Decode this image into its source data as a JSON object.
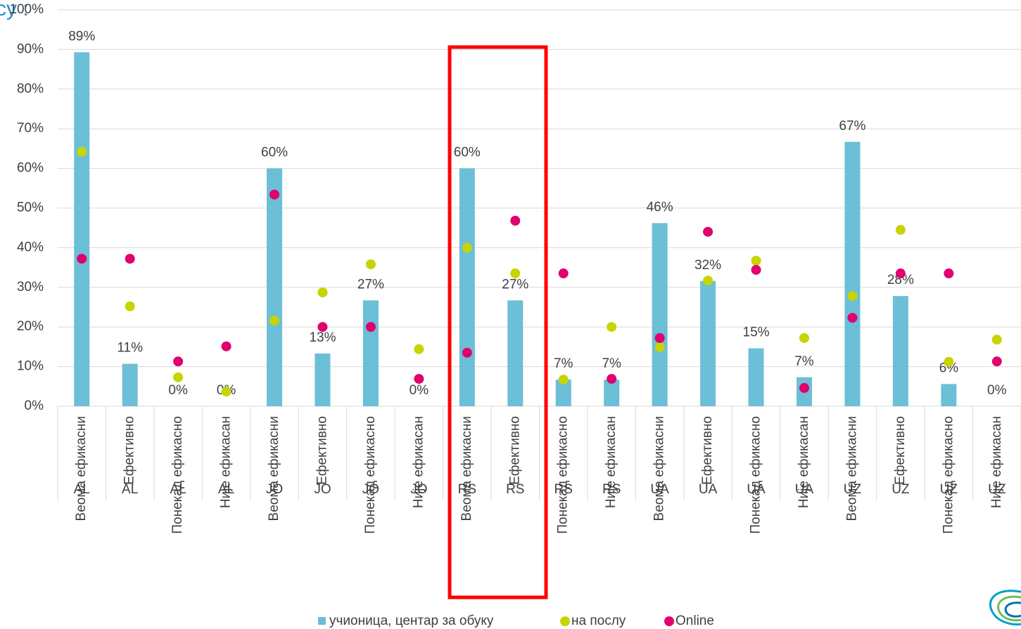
{
  "chart_data": {
    "type": "bar",
    "title": "су :",
    "categories": [
      "Веома ефикасни",
      "Ефективно",
      "Понекад ефикасно",
      "Није ефикасан",
      "Веома ефикасни",
      "Ефективно",
      "Понекад ефикасно",
      "Није ефикасан",
      "Веома ефикасни",
      "Ефективно",
      "Понекад ефикасно",
      "Није ефикасан",
      "Веома ефикасни",
      "Ефективно",
      "Понекад ефикасно",
      "Није ефикасан",
      "Веома ефикасни",
      "Ефективно",
      "Понекад ефикасно",
      "Није ефикасан"
    ],
    "groups": [
      "AL",
      "AL",
      "AL",
      "AL",
      "JO",
      "JO",
      "JO",
      "JO",
      "RS",
      "RS",
      "RS",
      "RS",
      "UA",
      "UA",
      "UA",
      "UA",
      "UZ",
      "UZ",
      "UZ",
      "UZ"
    ],
    "series": [
      {
        "name": "учионица, центар за обуку",
        "color": "#6bbfd6",
        "kind": "bar",
        "values": [
          89.3,
          10.7,
          0,
          0,
          60,
          13.3,
          26.7,
          0,
          60,
          26.7,
          6.7,
          6.7,
          46.2,
          31.6,
          14.6,
          7.3,
          66.7,
          27.8,
          5.6,
          0
        ],
        "value_labels": [
          "89%",
          "11%",
          "0%",
          "0%",
          "60%",
          "13%",
          "27%",
          "0%",
          "60%",
          "27%",
          "7%",
          "7%",
          "46%",
          "32%",
          "15%",
          "7%",
          "67%",
          "28%",
          "6%",
          "0%"
        ]
      },
      {
        "name": "на послу",
        "color": "#c8d400",
        "kind": "dot",
        "values": [
          64.2,
          25.2,
          7.3,
          3.7,
          21.6,
          28.7,
          35.8,
          14.4,
          40,
          33.5,
          6.7,
          20,
          14.9,
          31.7,
          36.7,
          17.2,
          27.8,
          44.5,
          11.2,
          16.8
        ]
      },
      {
        "name": "Online",
        "color": "#e0006e",
        "kind": "dot",
        "values": [
          37.2,
          37.2,
          11.3,
          15.1,
          53.4,
          20,
          20,
          6.9,
          13.5,
          46.8,
          33.5,
          6.9,
          17.2,
          44,
          34.4,
          4.6,
          22.3,
          33.5,
          33.5,
          11.3
        ]
      }
    ],
    "ylim": [
      0,
      100
    ],
    "yticks": [
      {
        "value": 0,
        "label": "0%"
      },
      {
        "value": 10,
        "label": "10%"
      },
      {
        "value": 20,
        "label": "20%"
      },
      {
        "value": 30,
        "label": "30%"
      },
      {
        "value": 40,
        "label": "40%"
      },
      {
        "value": 50,
        "label": "50%"
      },
      {
        "value": 60,
        "label": "60%"
      },
      {
        "value": 70,
        "label": "70%"
      },
      {
        "value": 80,
        "label": "80%"
      },
      {
        "value": 90,
        "label": "90%"
      },
      {
        "value": 100,
        "label": "100%"
      }
    ],
    "grid": true
  }
}
